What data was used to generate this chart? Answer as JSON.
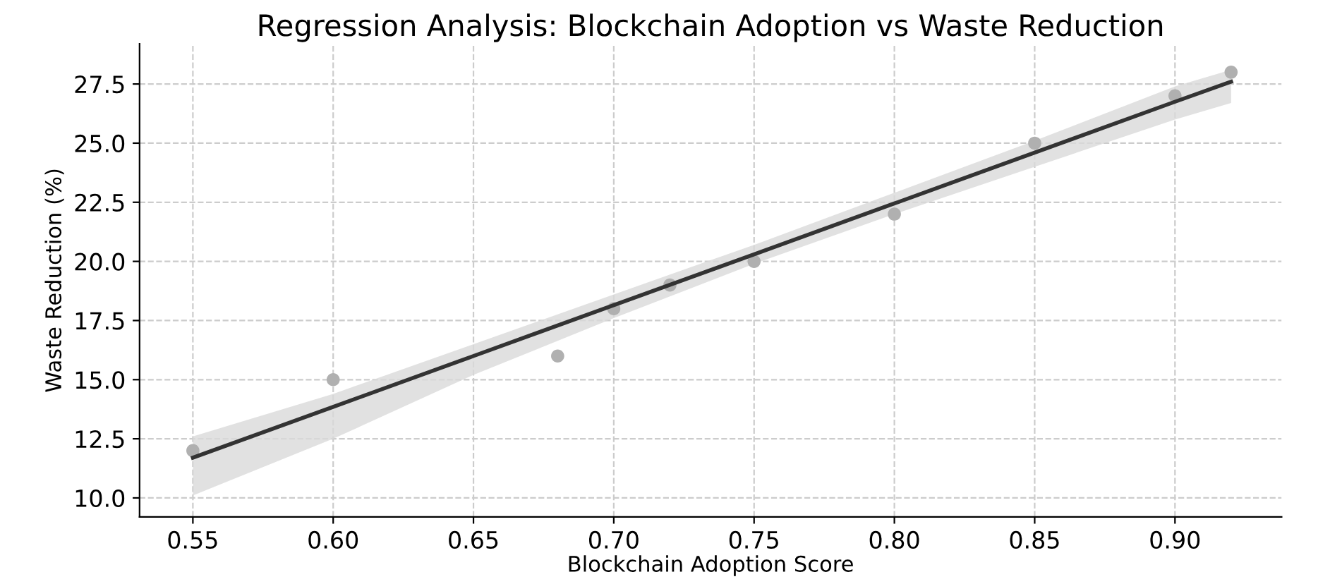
{
  "chart_data": {
    "type": "scatter",
    "title": "Regression Analysis: Blockchain Adoption vs Waste Reduction",
    "xlabel": "Blockchain Adoption Score",
    "ylabel": "Waste Reduction (%)",
    "series": [
      {
        "marker": "circle",
        "color": "#b0b0b0",
        "x": [
          0.55,
          0.6,
          0.68,
          0.7,
          0.72,
          0.75,
          0.8,
          0.85,
          0.9,
          0.92
        ],
        "values": [
          12,
          15,
          16,
          18,
          19,
          20,
          22,
          25,
          27,
          28
        ]
      },
      {
        "type": "line",
        "color": "#333333",
        "x": [
          0.55,
          0.6,
          0.65,
          0.7,
          0.75,
          0.8,
          0.85,
          0.9,
          0.92
        ],
        "values": [
          11.7,
          13.85,
          16.0,
          18.15,
          20.3,
          22.45,
          24.6,
          26.75,
          27.6
        ],
        "lower": [
          10.1,
          12.5,
          15.2,
          17.6,
          19.9,
          22.0,
          24.0,
          26.0,
          26.7
        ],
        "upper": [
          12.6,
          14.4,
          16.5,
          18.6,
          20.7,
          22.9,
          25.1,
          27.4,
          28.1
        ]
      }
    ],
    "xlim": [
      0.531,
      0.938
    ],
    "ylim": [
      9.2,
      29.2
    ],
    "xticks": [
      {
        "value": 0.55,
        "label": "0.55"
      },
      {
        "value": 0.6,
        "label": "0.60"
      },
      {
        "value": 0.65,
        "label": "0.65"
      },
      {
        "value": 0.7,
        "label": "0.70"
      },
      {
        "value": 0.75,
        "label": "0.75"
      },
      {
        "value": 0.8,
        "label": "0.80"
      },
      {
        "value": 0.85,
        "label": "0.85"
      },
      {
        "value": 0.9,
        "label": "0.90"
      }
    ],
    "yticks": [
      {
        "value": 10,
        "label": "10.0"
      },
      {
        "value": 12.5,
        "label": "12.5"
      },
      {
        "value": 15,
        "label": "15.0"
      },
      {
        "value": 17.5,
        "label": "17.5"
      },
      {
        "value": 20,
        "label": "20.0"
      },
      {
        "value": 22.5,
        "label": "22.5"
      },
      {
        "value": 25,
        "label": "25.0"
      },
      {
        "value": 27.5,
        "label": "27.5"
      }
    ],
    "grid": true,
    "line_style": "solid"
  }
}
